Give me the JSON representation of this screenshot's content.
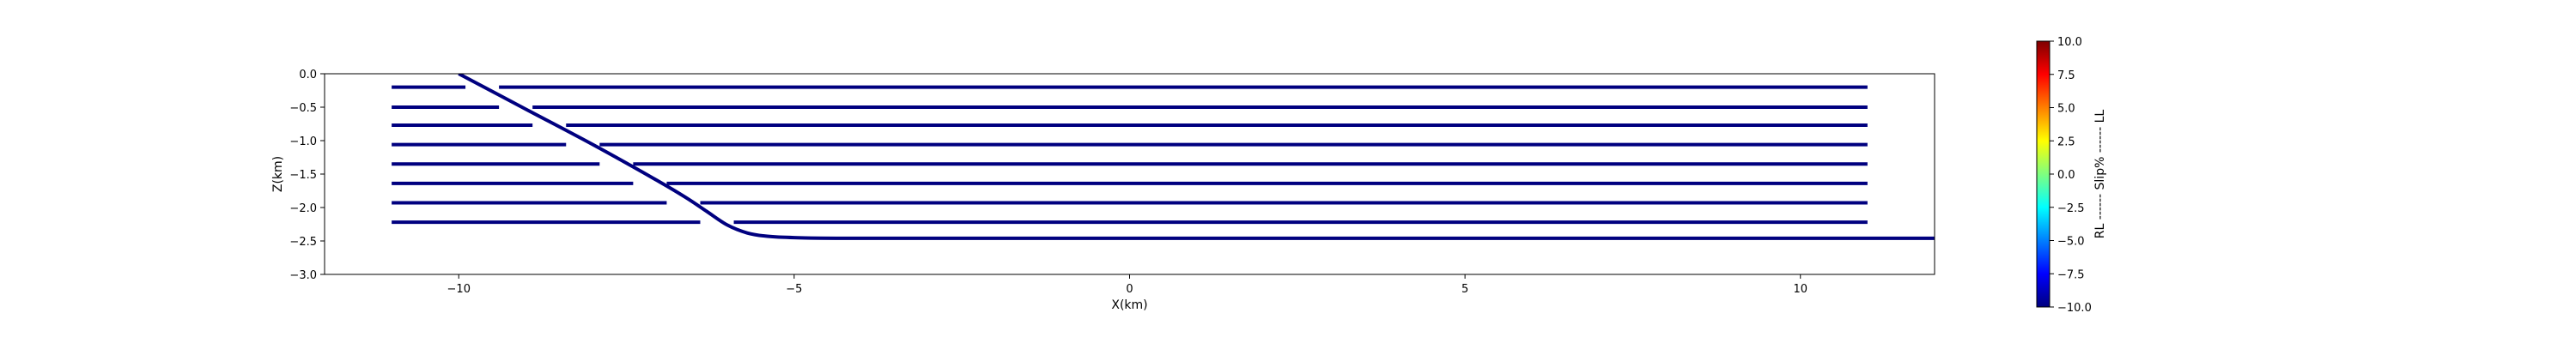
{
  "chart_data": {
    "type": "line",
    "xlabel": "X(km)",
    "ylabel": "Z(km)",
    "xlim": [
      -12,
      12
    ],
    "ylim": [
      -3.0,
      0.0
    ],
    "xticks": [
      -10,
      -5,
      0,
      5,
      10
    ],
    "xtick_labels": [
      "−10",
      "−5",
      "0",
      "5",
      "10"
    ],
    "yticks": [
      0.0,
      -0.5,
      -1.0,
      -1.5,
      -2.0,
      -2.5,
      -3.0
    ],
    "ytick_labels": [
      "0.0",
      "−0.5",
      "−1.0",
      "−1.5",
      "−2.0",
      "−2.5",
      "−3.0"
    ],
    "line_color": "#00007f",
    "fault_trace": {
      "x": [
        -10.0,
        -9.0,
        -8.0,
        -7.0,
        -6.6,
        -6.3,
        -6.0,
        -5.7,
        -5.4,
        -5.0,
        -4.0,
        0.0,
        5.0,
        10.0,
        12.0
      ],
      "z": [
        0.0,
        -0.53,
        -1.06,
        -1.62,
        -1.86,
        -2.06,
        -2.26,
        -2.38,
        -2.43,
        -2.45,
        -2.46,
        -2.46,
        -2.46,
        -2.46,
        -2.46
      ]
    },
    "layers": [
      {
        "z": -0.2,
        "segments": [
          [
            -11.0,
            -9.9
          ],
          [
            -9.4,
            11.0
          ]
        ]
      },
      {
        "z": -0.5,
        "segments": [
          [
            -11.0,
            -9.4
          ],
          [
            -8.9,
            11.0
          ]
        ]
      },
      {
        "z": -0.77,
        "segments": [
          [
            -11.0,
            -8.9
          ],
          [
            -8.4,
            11.0
          ]
        ]
      },
      {
        "z": -1.06,
        "segments": [
          [
            -11.0,
            -8.4
          ],
          [
            -7.9,
            11.0
          ]
        ]
      },
      {
        "z": -1.35,
        "segments": [
          [
            -11.0,
            -7.9
          ],
          [
            -7.4,
            11.0
          ]
        ]
      },
      {
        "z": -1.64,
        "segments": [
          [
            -11.0,
            -7.4
          ],
          [
            -6.9,
            11.0
          ]
        ]
      },
      {
        "z": -1.93,
        "segments": [
          [
            -11.0,
            -6.9
          ],
          [
            -6.4,
            11.0
          ]
        ]
      },
      {
        "z": -2.22,
        "segments": [
          [
            -11.0,
            -6.4
          ],
          [
            -5.9,
            11.0
          ]
        ]
      }
    ],
    "colorbar": {
      "label": "RL ------ Slip% ------ LL",
      "range": [
        -10.0,
        10.0
      ],
      "ticks": [
        10.0,
        7.5,
        5.0,
        2.5,
        0.0,
        -2.5,
        -5.0,
        -7.5,
        -10.0
      ],
      "tick_labels": [
        "10.0",
        "7.5",
        "5.0",
        "2.5",
        "0.0",
        "−2.5",
        "−5.0",
        "−7.5",
        "−10.0"
      ],
      "colormap": "jet",
      "colors": [
        "#00007f",
        "#0000ff",
        "#007fff",
        "#00ffff",
        "#7fff7f",
        "#ffff00",
        "#ff7f00",
        "#ff0000",
        "#7f0000"
      ]
    }
  }
}
